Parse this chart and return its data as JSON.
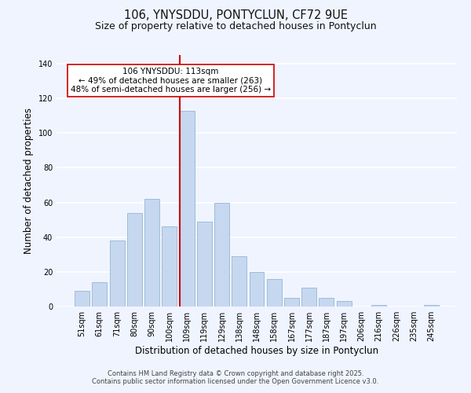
{
  "title": "106, YNYSDDU, PONTYCLUN, CF72 9UE",
  "subtitle": "Size of property relative to detached houses in Pontyclun",
  "xlabel": "Distribution of detached houses by size in Pontyclun",
  "ylabel": "Number of detached properties",
  "bar_labels": [
    "51sqm",
    "61sqm",
    "71sqm",
    "80sqm",
    "90sqm",
    "100sqm",
    "109sqm",
    "119sqm",
    "129sqm",
    "138sqm",
    "148sqm",
    "158sqm",
    "167sqm",
    "177sqm",
    "187sqm",
    "197sqm",
    "206sqm",
    "216sqm",
    "226sqm",
    "235sqm",
    "245sqm"
  ],
  "bar_values": [
    9,
    14,
    38,
    54,
    62,
    46,
    113,
    49,
    60,
    29,
    20,
    16,
    5,
    11,
    5,
    3,
    0,
    1,
    0,
    0,
    1
  ],
  "bar_color": "#c5d8f0",
  "bar_edge_color": "#a0bcd8",
  "vline_color": "#cc0000",
  "annotation_text": "106 YNYSDDU: 113sqm\n← 49% of detached houses are smaller (263)\n48% of semi-detached houses are larger (256) →",
  "annotation_box_edge": "#cc0000",
  "annotation_box_bg": "#ffffff",
  "ylim": [
    0,
    145
  ],
  "yticks": [
    0,
    20,
    40,
    60,
    80,
    100,
    120,
    140
  ],
  "footer_line1": "Contains HM Land Registry data © Crown copyright and database right 2025.",
  "footer_line2": "Contains public sector information licensed under the Open Government Licence v3.0.",
  "bg_color": "#f0f4ff",
  "grid_color": "#ffffff",
  "title_fontsize": 10.5,
  "subtitle_fontsize": 9,
  "tick_fontsize": 7,
  "ylabel_fontsize": 8.5,
  "xlabel_fontsize": 8.5,
  "footer_fontsize": 6,
  "annotation_fontsize": 7.5
}
